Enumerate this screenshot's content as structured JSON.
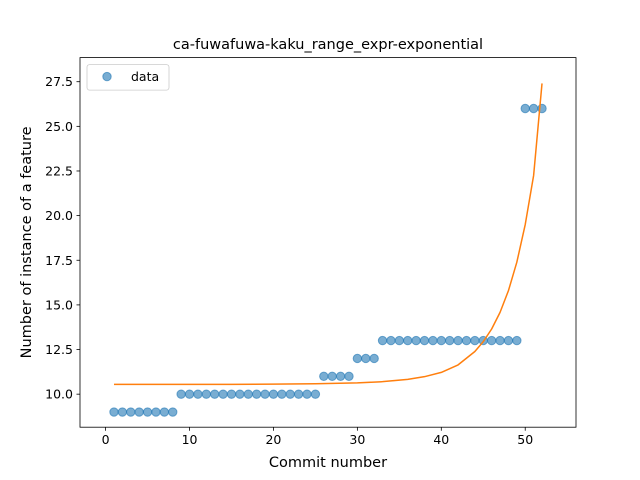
{
  "chart_data": {
    "type": "scatter",
    "title": "ca-fuwafuwa-kaku_range_expr-exponential",
    "xlabel": "Commit number",
    "ylabel": "Number of instance of a feature",
    "xlim": [
      -3.05,
      56.05
    ],
    "ylim": [
      8.15,
      28.85
    ],
    "xticks": [
      0,
      10,
      20,
      30,
      40,
      50
    ],
    "yticks": [
      10.0,
      12.5,
      15.0,
      17.5,
      20.0,
      22.5,
      25.0,
      27.5
    ],
    "xtick_labels": [
      "0",
      "10",
      "20",
      "30",
      "40",
      "50"
    ],
    "ytick_labels": [
      "10.0",
      "12.5",
      "15.0",
      "17.5",
      "20.0",
      "22.5",
      "25.0",
      "27.5"
    ],
    "grid": false,
    "legend_position": "upper-left",
    "colors": {
      "data": "#1f77b4",
      "fit": "#ff7f0e"
    },
    "series": [
      {
        "name": "data",
        "kind": "scatter",
        "x": [
          1,
          2,
          3,
          4,
          5,
          6,
          7,
          8,
          9,
          10,
          11,
          12,
          13,
          14,
          15,
          16,
          17,
          18,
          19,
          20,
          21,
          22,
          23,
          24,
          25,
          26,
          27,
          28,
          29,
          30,
          31,
          32,
          33,
          34,
          35,
          36,
          37,
          38,
          39,
          40,
          41,
          42,
          43,
          44,
          45,
          46,
          47,
          48,
          49,
          50,
          51,
          52
        ],
        "y": [
          9,
          9,
          9,
          9,
          9,
          9,
          9,
          9,
          10,
          10,
          10,
          10,
          10,
          10,
          10,
          10,
          10,
          10,
          10,
          10,
          10,
          10,
          10,
          10,
          10,
          11,
          11,
          11,
          11,
          12,
          12,
          12,
          13,
          13,
          13,
          13,
          13,
          13,
          13,
          13,
          13,
          13,
          13,
          13,
          13,
          13,
          13,
          13,
          13,
          26,
          26,
          26
        ]
      },
      {
        "kind": "line",
        "x": [
          1,
          5,
          10,
          15,
          20,
          25,
          30,
          33,
          36,
          38,
          40,
          42,
          44,
          45,
          46,
          47,
          48,
          49,
          50,
          51,
          52
        ],
        "y": [
          10.55,
          10.55,
          10.55,
          10.55,
          10.56,
          10.58,
          10.63,
          10.7,
          10.83,
          10.98,
          11.22,
          11.64,
          12.39,
          12.94,
          13.65,
          14.58,
          15.8,
          17.39,
          19.5,
          22.25,
          27.4
        ]
      }
    ]
  }
}
